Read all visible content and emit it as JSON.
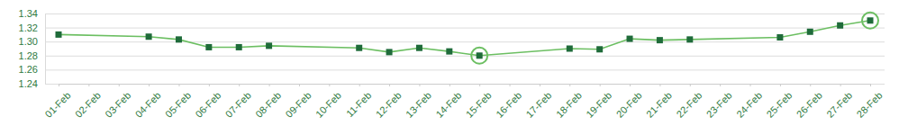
{
  "chart_data": {
    "type": "line",
    "categories": [
      "01-Feb",
      "02-Feb",
      "03-Feb",
      "04-Feb",
      "05-Feb",
      "06-Feb",
      "07-Feb",
      "08-Feb",
      "09-Feb",
      "10-Feb",
      "11-Feb",
      "12-Feb",
      "13-Feb",
      "14-Feb",
      "15-Feb",
      "16-Feb",
      "17-Feb",
      "18-Feb",
      "19-Feb",
      "20-Feb",
      "21-Feb",
      "22-Feb",
      "23-Feb",
      "24-Feb",
      "25-Feb",
      "26-Feb",
      "27-Feb",
      "28-Feb"
    ],
    "series": [
      {
        "color": "#6cbf62",
        "marker": "square",
        "line_style": "solid",
        "x": [
          "01-Feb",
          "04-Feb",
          "05-Feb",
          "06-Feb",
          "07-Feb",
          "08-Feb",
          "11-Feb",
          "12-Feb",
          "13-Feb",
          "14-Feb",
          "15-Feb",
          "18-Feb",
          "19-Feb",
          "20-Feb",
          "21-Feb",
          "22-Feb",
          "25-Feb",
          "26-Feb",
          "27-Feb",
          "28-Feb"
        ],
        "values": [
          1.31,
          1.307,
          1.303,
          1.292,
          1.292,
          1.294,
          1.291,
          1.285,
          1.291,
          1.286,
          1.28,
          1.29,
          1.289,
          1.304,
          1.302,
          1.303,
          1.306,
          1.314,
          1.323,
          1.33
        ]
      }
    ],
    "highlight": [
      "15-Feb",
      "28-Feb"
    ],
    "ylim": [
      1.24,
      1.34
    ],
    "yticks": [
      1.24,
      1.26,
      1.28,
      {
        "value": 1.3,
        "label": "1.30"
      },
      1.32,
      1.34
    ],
    "grid": true
  }
}
